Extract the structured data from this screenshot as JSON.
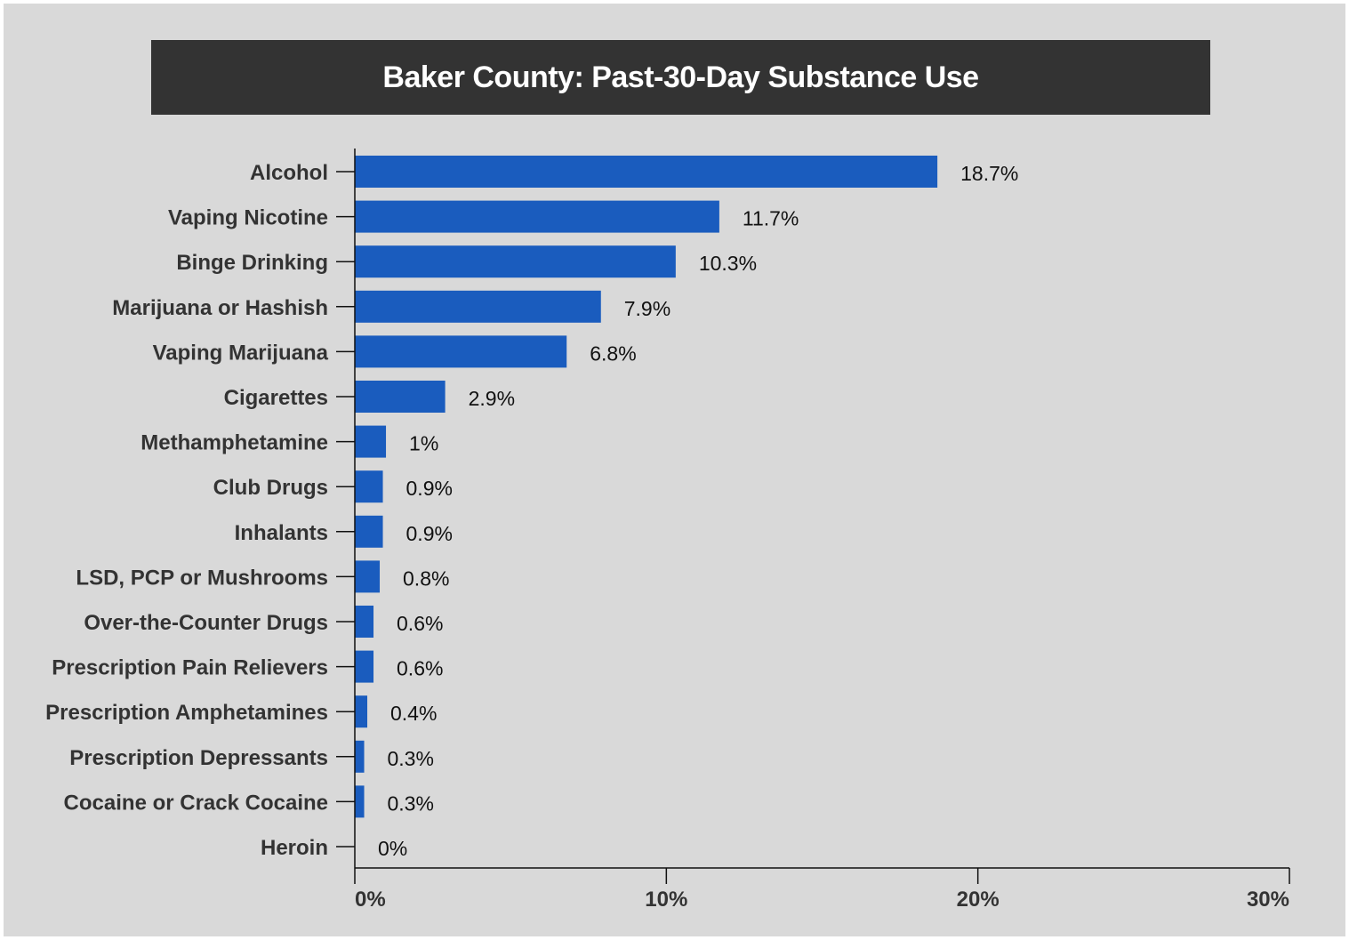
{
  "title": "Baker County: Past-30-Day Substance Use",
  "colors": {
    "background": "#d9d9d9",
    "title_background": "#333333",
    "title_text": "#ffffff",
    "bar": "#1a5cbe",
    "axis": "#111111",
    "label_text": "#333333"
  },
  "chart_data": {
    "type": "bar",
    "orientation": "horizontal",
    "title": "Baker County: Past-30-Day Substance Use",
    "categories": [
      "Alcohol",
      "Vaping Nicotine",
      "Binge Drinking",
      "Marijuana or Hashish",
      "Vaping Marijuana",
      "Cigarettes",
      "Methamphetamine",
      "Club Drugs",
      "Inhalants",
      "LSD, PCP or Mushrooms",
      "Over-the-Counter Drugs",
      "Prescription Pain Relievers",
      "Prescription Amphetamines",
      "Prescription Depressants",
      "Cocaine or Crack Cocaine",
      "Heroin"
    ],
    "values": [
      18.7,
      11.7,
      10.3,
      7.9,
      6.8,
      2.9,
      1,
      0.9,
      0.9,
      0.8,
      0.6,
      0.6,
      0.4,
      0.3,
      0.3,
      0
    ],
    "value_labels": [
      "18.7%",
      "11.7%",
      "10.3%",
      "7.9%",
      "6.8%",
      "2.9%",
      "1%",
      "0.9%",
      "0.9%",
      "0.8%",
      "0.6%",
      "0.6%",
      "0.4%",
      "0.3%",
      "0.3%",
      "0%"
    ],
    "xlim": [
      0,
      30
    ],
    "x_ticks": [
      0,
      10,
      20,
      30
    ],
    "x_tick_labels": [
      "0%",
      "10%",
      "20%",
      "30%"
    ],
    "xlabel": "",
    "ylabel": "",
    "grid": false,
    "legend": "none"
  }
}
